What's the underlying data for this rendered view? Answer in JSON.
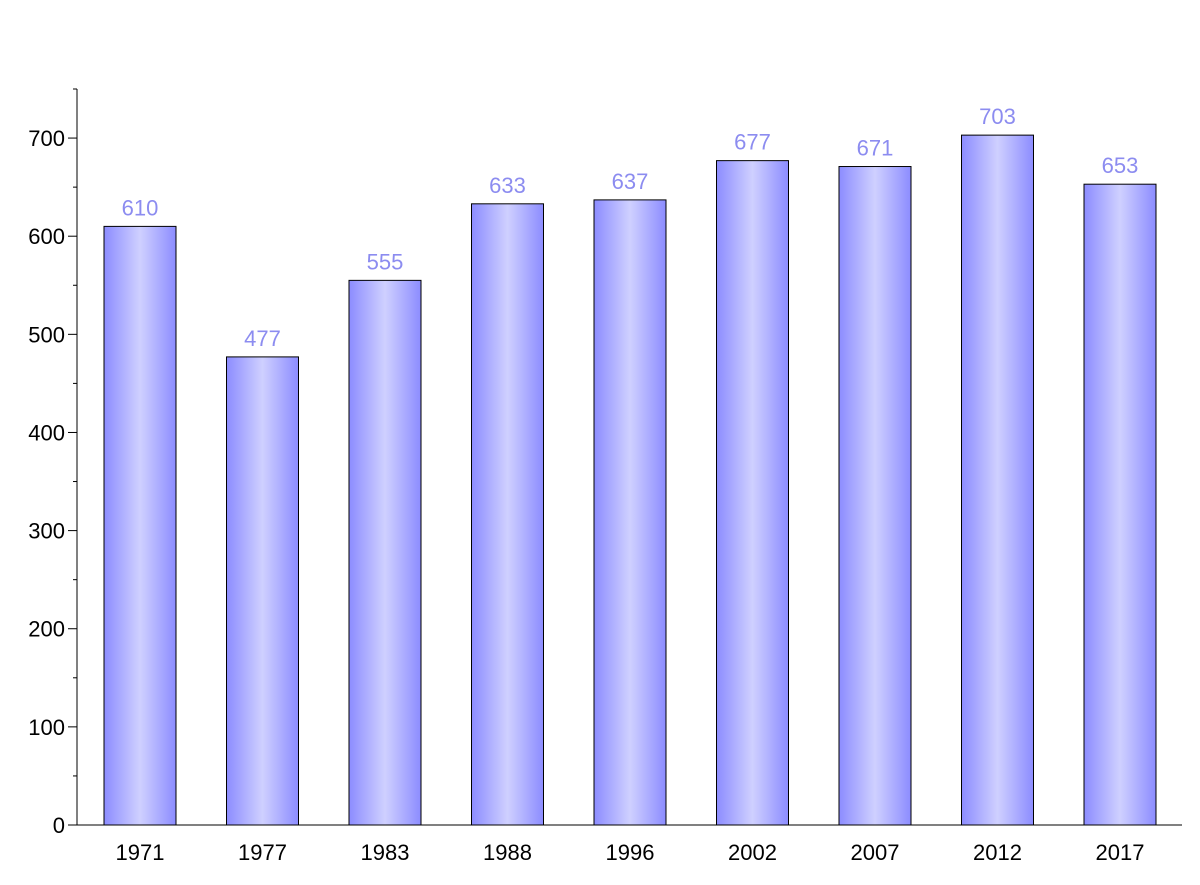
{
  "chart_data": {
    "type": "bar",
    "title": "",
    "xlabel": "",
    "ylabel": "",
    "categories": [
      "1971",
      "1977",
      "1983",
      "1988",
      "1996",
      "2002",
      "2007",
      "2012",
      "2017"
    ],
    "values": [
      610,
      477,
      555,
      633,
      637,
      677,
      671,
      703,
      653
    ],
    "ylim": [
      0,
      750
    ],
    "yticks": [
      0,
      100,
      200,
      300,
      400,
      500,
      600,
      700
    ],
    "grid": false,
    "legend": "none",
    "data_labels": true,
    "colors": {
      "bar_edge": "#8c8cff",
      "bar_center": "#cfd0ff",
      "data_label": "#8c8cf0",
      "axis": "#000000"
    }
  }
}
